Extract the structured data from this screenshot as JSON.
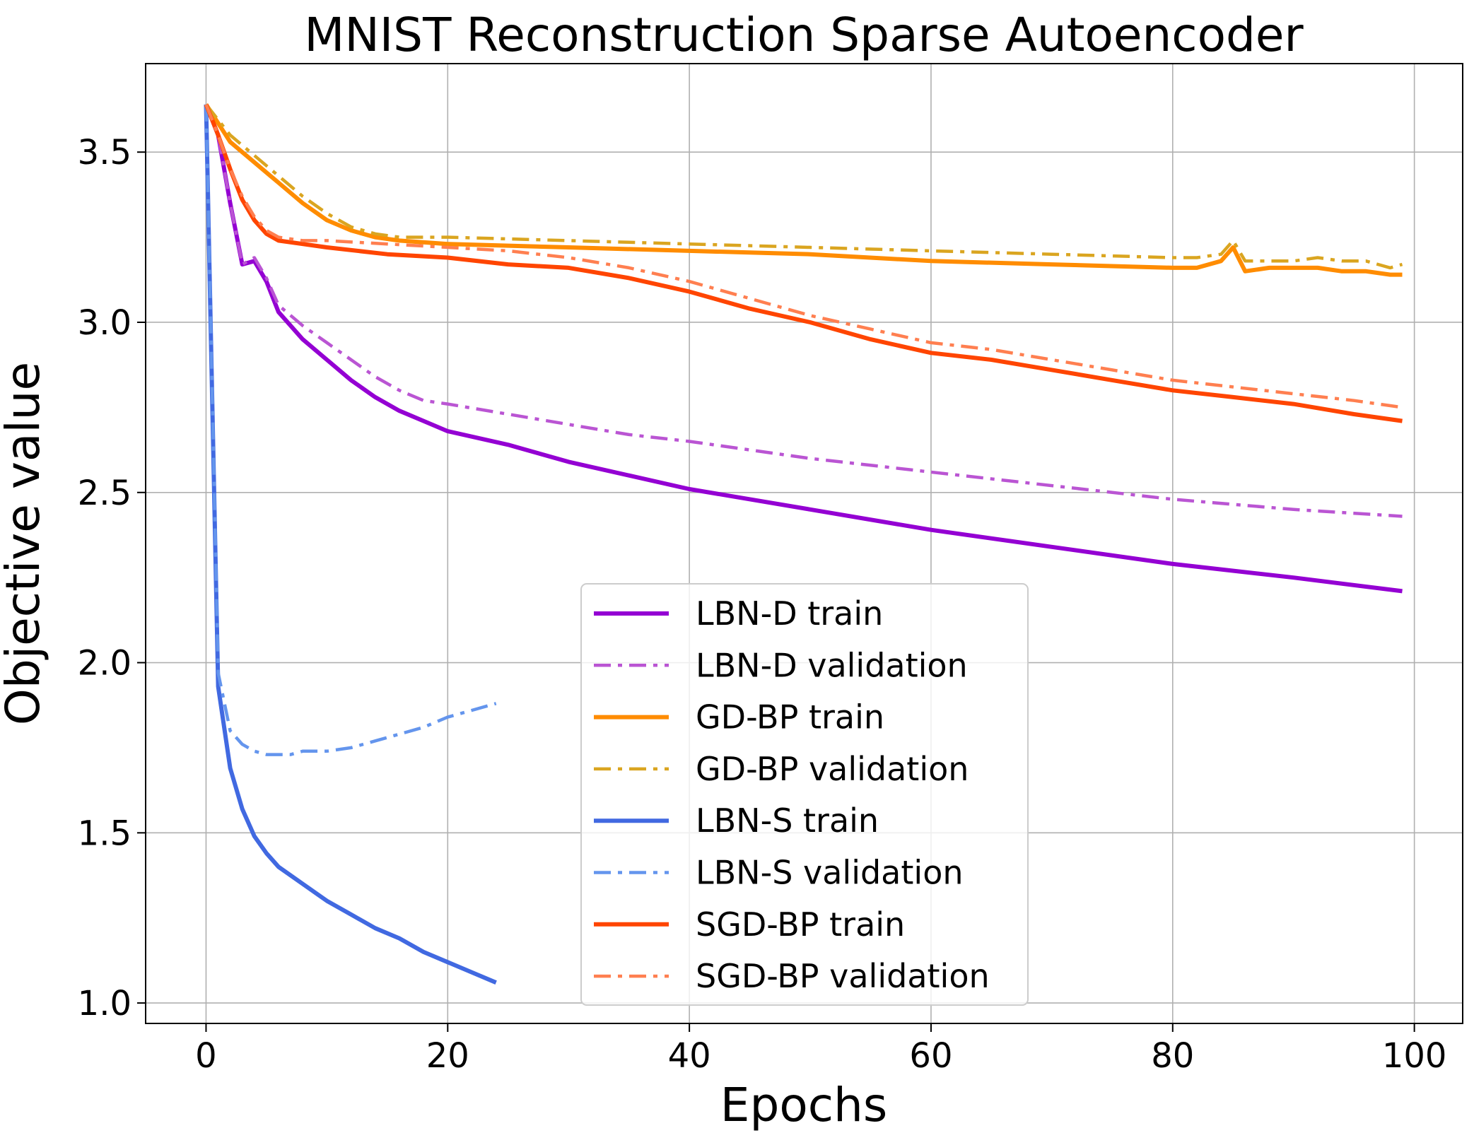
{
  "chart_data": {
    "type": "line",
    "title": "MNIST Reconstruction Sparse Autoencoder",
    "xlabel": "Epochs",
    "ylabel": "Objective value",
    "xlim": [
      -5,
      104
    ],
    "ylim": [
      0.94,
      3.76
    ],
    "xticks": [
      0,
      20,
      40,
      60,
      80,
      100
    ],
    "xtick_labels": [
      "0",
      "20",
      "40",
      "60",
      "80",
      "100"
    ],
    "yticks": [
      1.0,
      1.5,
      2.0,
      2.5,
      3.0,
      3.5
    ],
    "ytick_labels": [
      "1.0",
      "1.5",
      "2.0",
      "2.5",
      "3.0",
      "3.5"
    ],
    "grid": true,
    "legend_position": "lower-center",
    "series": [
      {
        "name": "LBN-D train",
        "color": "#9400D3",
        "style": "solid",
        "x": [
          0,
          1,
          2,
          3,
          4,
          5,
          6,
          8,
          10,
          12,
          14,
          16,
          18,
          20,
          25,
          30,
          35,
          40,
          50,
          60,
          70,
          80,
          90,
          99
        ],
        "y": [
          3.64,
          3.55,
          3.35,
          3.17,
          3.18,
          3.12,
          3.03,
          2.95,
          2.89,
          2.83,
          2.78,
          2.74,
          2.71,
          2.68,
          2.64,
          2.59,
          2.55,
          2.51,
          2.45,
          2.39,
          2.34,
          2.29,
          2.25,
          2.21
        ]
      },
      {
        "name": "LBN-D validation",
        "color": "#BA55D3",
        "style": "dashdot",
        "x": [
          0,
          1,
          2,
          3,
          4,
          5,
          6,
          8,
          10,
          12,
          14,
          16,
          18,
          20,
          25,
          30,
          35,
          40,
          50,
          60,
          70,
          80,
          90,
          99
        ],
        "y": [
          3.64,
          3.55,
          3.35,
          3.17,
          3.19,
          3.13,
          3.05,
          2.99,
          2.94,
          2.89,
          2.84,
          2.8,
          2.77,
          2.76,
          2.73,
          2.7,
          2.67,
          2.65,
          2.6,
          2.56,
          2.52,
          2.48,
          2.45,
          2.43
        ]
      },
      {
        "name": "GD-BP train",
        "color": "#FF8C00",
        "style": "solid",
        "x": [
          0,
          2,
          4,
          6,
          8,
          10,
          12,
          14,
          16,
          20,
          30,
          40,
          50,
          60,
          70,
          80,
          82,
          84,
          85,
          86,
          88,
          90,
          92,
          94,
          96,
          98,
          99
        ],
        "y": [
          3.64,
          3.53,
          3.47,
          3.41,
          3.35,
          3.3,
          3.27,
          3.25,
          3.24,
          3.23,
          3.22,
          3.21,
          3.2,
          3.18,
          3.17,
          3.16,
          3.16,
          3.18,
          3.22,
          3.15,
          3.16,
          3.16,
          3.16,
          3.15,
          3.15,
          3.14,
          3.14
        ]
      },
      {
        "name": "GD-BP validation",
        "color": "#DAA520",
        "style": "dashdot",
        "x": [
          0,
          2,
          4,
          6,
          8,
          10,
          12,
          14,
          16,
          20,
          30,
          40,
          50,
          60,
          70,
          80,
          82,
          84,
          85,
          86,
          88,
          90,
          92,
          94,
          96,
          98,
          99
        ],
        "y": [
          3.64,
          3.55,
          3.49,
          3.43,
          3.37,
          3.32,
          3.28,
          3.26,
          3.25,
          3.25,
          3.24,
          3.23,
          3.22,
          3.21,
          3.2,
          3.19,
          3.19,
          3.2,
          3.24,
          3.18,
          3.18,
          3.18,
          3.19,
          3.18,
          3.18,
          3.16,
          3.17
        ]
      },
      {
        "name": "LBN-S train",
        "color": "#4169E1",
        "style": "solid",
        "x": [
          0,
          1,
          2,
          3,
          4,
          5,
          6,
          8,
          10,
          12,
          14,
          16,
          18,
          20,
          22,
          24
        ],
        "y": [
          3.64,
          1.93,
          1.69,
          1.57,
          1.49,
          1.44,
          1.4,
          1.35,
          1.3,
          1.26,
          1.22,
          1.19,
          1.15,
          1.12,
          1.09,
          1.06
        ]
      },
      {
        "name": "LBN-S validation",
        "color": "#6495ED",
        "style": "dashdot",
        "x": [
          0,
          1,
          2,
          3,
          4,
          5,
          6,
          7,
          8,
          10,
          12,
          14,
          16,
          18,
          20,
          22,
          24
        ],
        "y": [
          3.64,
          1.97,
          1.8,
          1.76,
          1.74,
          1.73,
          1.73,
          1.73,
          1.74,
          1.74,
          1.75,
          1.77,
          1.79,
          1.81,
          1.84,
          1.86,
          1.88
        ]
      },
      {
        "name": "SGD-BP train",
        "color": "#FF4500",
        "style": "solid",
        "x": [
          0,
          1,
          2,
          3,
          4,
          5,
          6,
          8,
          10,
          15,
          20,
          25,
          30,
          35,
          40,
          45,
          50,
          55,
          60,
          65,
          70,
          75,
          80,
          85,
          90,
          95,
          99
        ],
        "y": [
          3.64,
          3.55,
          3.45,
          3.36,
          3.3,
          3.26,
          3.24,
          3.23,
          3.22,
          3.2,
          3.19,
          3.17,
          3.16,
          3.13,
          3.09,
          3.04,
          3.0,
          2.95,
          2.91,
          2.89,
          2.86,
          2.83,
          2.8,
          2.78,
          2.76,
          2.73,
          2.71
        ]
      },
      {
        "name": "SGD-BP validation",
        "color": "#FF7F50",
        "style": "dashdot",
        "x": [
          0,
          1,
          2,
          3,
          4,
          5,
          6,
          8,
          10,
          15,
          20,
          25,
          30,
          35,
          40,
          45,
          50,
          55,
          60,
          65,
          70,
          75,
          80,
          85,
          90,
          95,
          99
        ],
        "y": [
          3.64,
          3.55,
          3.45,
          3.37,
          3.31,
          3.27,
          3.25,
          3.24,
          3.24,
          3.23,
          3.22,
          3.21,
          3.19,
          3.16,
          3.12,
          3.07,
          3.02,
          2.98,
          2.94,
          2.92,
          2.89,
          2.86,
          2.83,
          2.81,
          2.79,
          2.77,
          2.75
        ]
      }
    ]
  }
}
